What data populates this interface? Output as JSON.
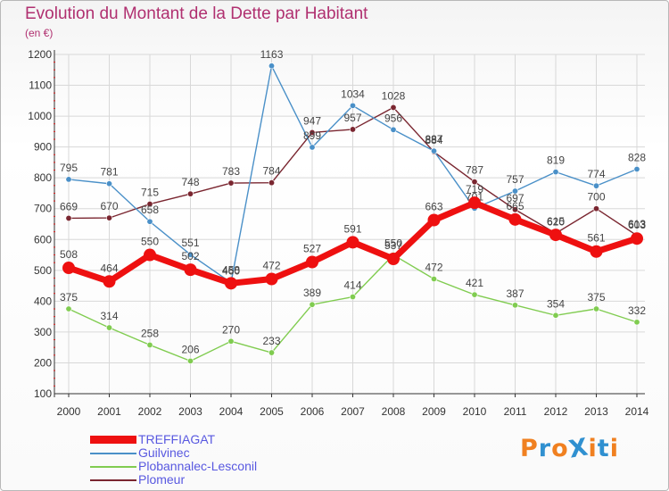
{
  "title": "Evolution du Montant de la Dette par Habitant",
  "unit": "(en €)",
  "logo_text": "ProXiti",
  "logo_colors": [
    "#f08020",
    "#3090d0",
    "#f08020",
    "#3090d0",
    "#f08020",
    "#3090d0",
    "#f08020"
  ],
  "colors": {
    "title": "#b03070",
    "axis": "#333333",
    "grid": "#d8d8d8",
    "tick_marks": "#e02020",
    "legend_text": "#5858e0"
  },
  "chart_data": {
    "type": "line",
    "x": [
      "2000",
      "2001",
      "2002",
      "2003",
      "2004",
      "2005",
      "2006",
      "2007",
      "2008",
      "2009",
      "2010",
      "2011",
      "2012",
      "2013",
      "2014"
    ],
    "ylim": [
      100,
      1200
    ],
    "yticks": [
      100,
      200,
      300,
      400,
      500,
      600,
      700,
      800,
      900,
      1000,
      1100,
      1200
    ],
    "grid": true,
    "legend_position": "bottom-left",
    "series": [
      {
        "name": "Plobannalec-Lesconil",
        "color": "#80cc50",
        "values": [
          375,
          314,
          258,
          206,
          270,
          233,
          389,
          414,
          550,
          472,
          421,
          387,
          354,
          375,
          332
        ],
        "labels": [
          "375",
          "314",
          "258",
          "206",
          "270",
          "233",
          "389",
          "414",
          "550",
          "472",
          "421",
          "387",
          "354",
          "375",
          "332"
        ]
      },
      {
        "name": "Plomeur",
        "color": "#7a2630",
        "values": [
          669,
          670,
          715,
          748,
          783,
          784,
          947,
          957,
          1028,
          884,
          787,
          697,
          620,
          700,
          613
        ],
        "labels": [
          "669",
          "670",
          "715",
          "748",
          "783",
          "784",
          "947",
          "957",
          "1028",
          "884",
          "787",
          "697",
          "620",
          "700",
          "613"
        ]
      },
      {
        "name": "Guilvinec",
        "color": "#4a90c8",
        "values": [
          795,
          781,
          658,
          551,
          460,
          1163,
          899,
          1034,
          956,
          887,
          701,
          757,
          819,
          774,
          828
        ],
        "labels": [
          "795",
          "781",
          "658",
          "551",
          "460",
          "1163",
          "899",
          "1034",
          "956",
          "887",
          "701",
          "757",
          "819",
          "774",
          "828"
        ]
      },
      {
        "name": "TREFFIAGAT",
        "color": "#ee1010",
        "values": [
          508,
          464,
          550,
          502,
          458,
          472,
          527,
          591,
          537,
          663,
          719,
          665,
          615,
          561,
          603
        ],
        "labels": [
          "508",
          "464",
          "550",
          "502",
          "458",
          "472",
          "527",
          "591",
          "537",
          "663",
          "719",
          "665",
          "615",
          "561",
          "603"
        ]
      }
    ],
    "legend_order": [
      "TREFFIAGAT",
      "Guilvinec",
      "Plobannalec-Lesconil",
      "Plomeur"
    ]
  }
}
